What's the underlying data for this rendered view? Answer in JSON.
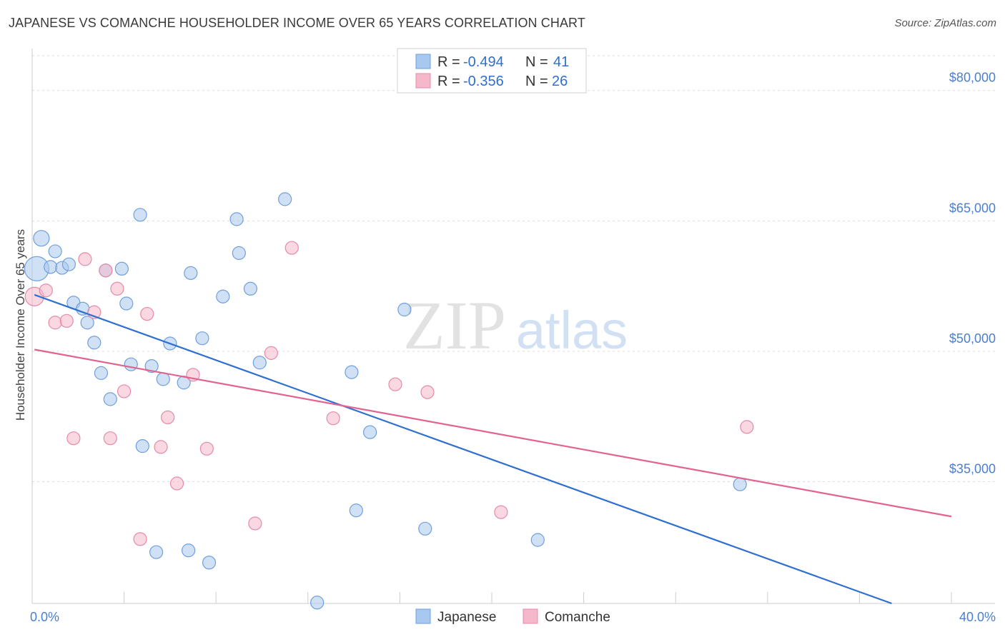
{
  "header": {
    "title": "JAPANESE VS COMANCHE HOUSEHOLDER INCOME OVER 65 YEARS CORRELATION CHART",
    "source": "Source: ZipAtlas.com"
  },
  "watermark": {
    "zip": "ZIP",
    "atlas": "atlas"
  },
  "legend": {
    "r_label": "R =",
    "n_label": "N =",
    "rows": [
      {
        "name": "Japanese",
        "r": "-0.494",
        "n": "41"
      },
      {
        "name": "Comanche",
        "r": "-0.356",
        "n": "26"
      }
    ]
  },
  "chart_data": {
    "type": "scatter",
    "title": "JAPANESE VS COMANCHE HOUSEHOLDER INCOME OVER 65 YEARS CORRELATION CHART",
    "xlabel": "",
    "ylabel": "Householder Income Over 65 years",
    "xlim": [
      0,
      40
    ],
    "ylim": [
      21000,
      84000
    ],
    "x_tick_labels": [
      "0.0%",
      "40.0%"
    ],
    "y_ticks": [
      80000,
      65000,
      50000,
      35000
    ],
    "y_tick_labels": [
      "$80,000",
      "$65,000",
      "$50,000",
      "$35,000"
    ],
    "grid": true,
    "legend_position": "bottom-center",
    "colors": {
      "Japanese": "#a9c8ef",
      "Comanche": "#f5b8cb",
      "Japanese_line": "#2f6fd0",
      "Comanche_line": "#e0648f"
    },
    "series": [
      {
        "name": "Japanese",
        "trend": [
          [
            0.1,
            56500
          ],
          [
            37.4,
            21000
          ]
        ],
        "points": [
          [
            0.4,
            63000,
            22
          ],
          [
            0.2,
            59500,
            34
          ],
          [
            0.8,
            59700,
            18
          ],
          [
            1.3,
            59600,
            18
          ],
          [
            1.6,
            60000,
            18
          ],
          [
            1.0,
            61500,
            18
          ],
          [
            1.8,
            55600,
            18
          ],
          [
            2.2,
            54900,
            18
          ],
          [
            2.4,
            53300,
            18
          ],
          [
            2.7,
            51000,
            18
          ],
          [
            3.0,
            47500,
            18
          ],
          [
            3.4,
            44500,
            18
          ],
          [
            3.2,
            59300,
            18
          ],
          [
            3.9,
            59500,
            18
          ],
          [
            4.1,
            55500,
            18
          ],
          [
            4.3,
            48500,
            18
          ],
          [
            4.7,
            65700,
            18
          ],
          [
            4.8,
            39100,
            18
          ],
          [
            5.2,
            48300,
            18
          ],
          [
            5.4,
            26900,
            18
          ],
          [
            5.7,
            46800,
            18
          ],
          [
            6.0,
            50900,
            18
          ],
          [
            6.6,
            46400,
            18
          ],
          [
            6.9,
            59000,
            18
          ],
          [
            6.8,
            27100,
            18
          ],
          [
            7.4,
            51500,
            18
          ],
          [
            7.7,
            25700,
            18
          ],
          [
            8.3,
            56300,
            18
          ],
          [
            8.9,
            65200,
            18
          ],
          [
            9.0,
            61300,
            18
          ],
          [
            9.5,
            57200,
            18
          ],
          [
            9.9,
            48700,
            18
          ],
          [
            11.0,
            67500,
            18
          ],
          [
            12.4,
            21100,
            18
          ],
          [
            13.9,
            47600,
            18
          ],
          [
            14.1,
            31700,
            18
          ],
          [
            14.7,
            40700,
            18
          ],
          [
            16.2,
            54800,
            18
          ],
          [
            17.1,
            29600,
            18
          ],
          [
            22.0,
            28300,
            18
          ],
          [
            30.8,
            34700,
            18
          ]
        ]
      },
      {
        "name": "Comanche",
        "trend": [
          [
            0.1,
            50200
          ],
          [
            40.0,
            31000
          ]
        ],
        "points": [
          [
            0.1,
            56300,
            26
          ],
          [
            0.6,
            57000,
            18
          ],
          [
            1.0,
            53300,
            18
          ],
          [
            1.5,
            53500,
            18
          ],
          [
            1.8,
            40000,
            18
          ],
          [
            2.3,
            60600,
            18
          ],
          [
            2.7,
            54500,
            18
          ],
          [
            3.2,
            59300,
            18
          ],
          [
            3.4,
            40000,
            18
          ],
          [
            3.7,
            57200,
            18
          ],
          [
            4.0,
            45400,
            18
          ],
          [
            4.7,
            28400,
            18
          ],
          [
            5.0,
            54300,
            18
          ],
          [
            5.6,
            39000,
            18
          ],
          [
            5.9,
            42400,
            18
          ],
          [
            6.3,
            34800,
            18
          ],
          [
            7.0,
            47300,
            18
          ],
          [
            7.6,
            38800,
            18
          ],
          [
            9.7,
            30200,
            18
          ],
          [
            10.4,
            49800,
            18
          ],
          [
            11.3,
            61900,
            18
          ],
          [
            13.1,
            42300,
            18
          ],
          [
            15.8,
            46200,
            18
          ],
          [
            17.2,
            45300,
            18
          ],
          [
            20.4,
            31500,
            18
          ],
          [
            31.1,
            41300,
            18
          ]
        ]
      }
    ]
  }
}
